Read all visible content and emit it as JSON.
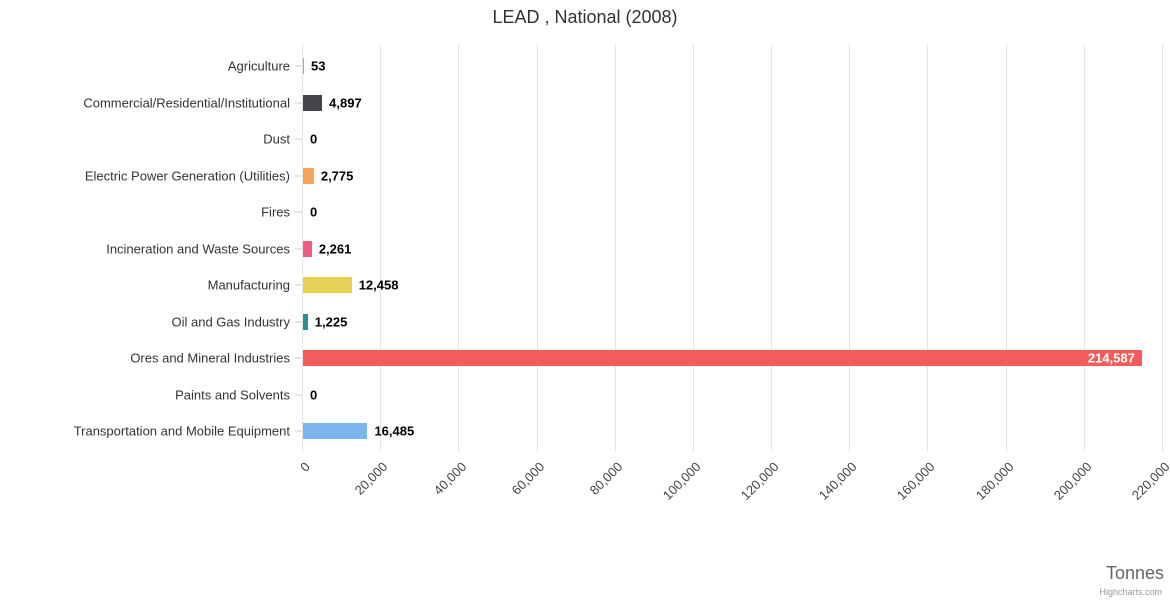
{
  "credits": "Highcharts.com",
  "chart_data": {
    "type": "bar",
    "orientation": "horizontal",
    "title": "LEAD , National (2008)",
    "xlabel": "Tonnes",
    "ylabel": "",
    "grid": true,
    "legend": "none",
    "xlim": [
      0,
      220000
    ],
    "tick_interval": 20000,
    "tick_labels": [
      "0",
      "20,000",
      "40,000",
      "60,000",
      "80,000",
      "100,000",
      "120,000",
      "140,000",
      "160,000",
      "180,000",
      "200,000",
      "220,000"
    ],
    "categories": [
      "Agriculture",
      "Commercial/Residential/Institutional",
      "Dust",
      "Electric Power Generation (Utilities)",
      "Fires",
      "Incineration and Waste Sources",
      "Manufacturing",
      "Oil and Gas Industry",
      "Ores and Mineral Industries",
      "Paints and Solvents",
      "Transportation and Mobile Equipment"
    ],
    "values": [
      53,
      4897,
      0,
      2775,
      0,
      2261,
      12458,
      1225,
      214587,
      0,
      16485
    ],
    "value_labels": [
      "53",
      "4,897",
      "0",
      "2,775",
      "0",
      "2,261",
      "12,458",
      "1,225",
      "214,587",
      "0",
      "16,485"
    ],
    "colors": [
      "#7cb5ec",
      "#434348",
      "#90ed7d",
      "#f7a35c",
      "#8085e9",
      "#f15c80",
      "#e4d354",
      "#2b908f",
      "#f45b5b",
      "#91e8e1",
      "#7cb5ec"
    ]
  }
}
